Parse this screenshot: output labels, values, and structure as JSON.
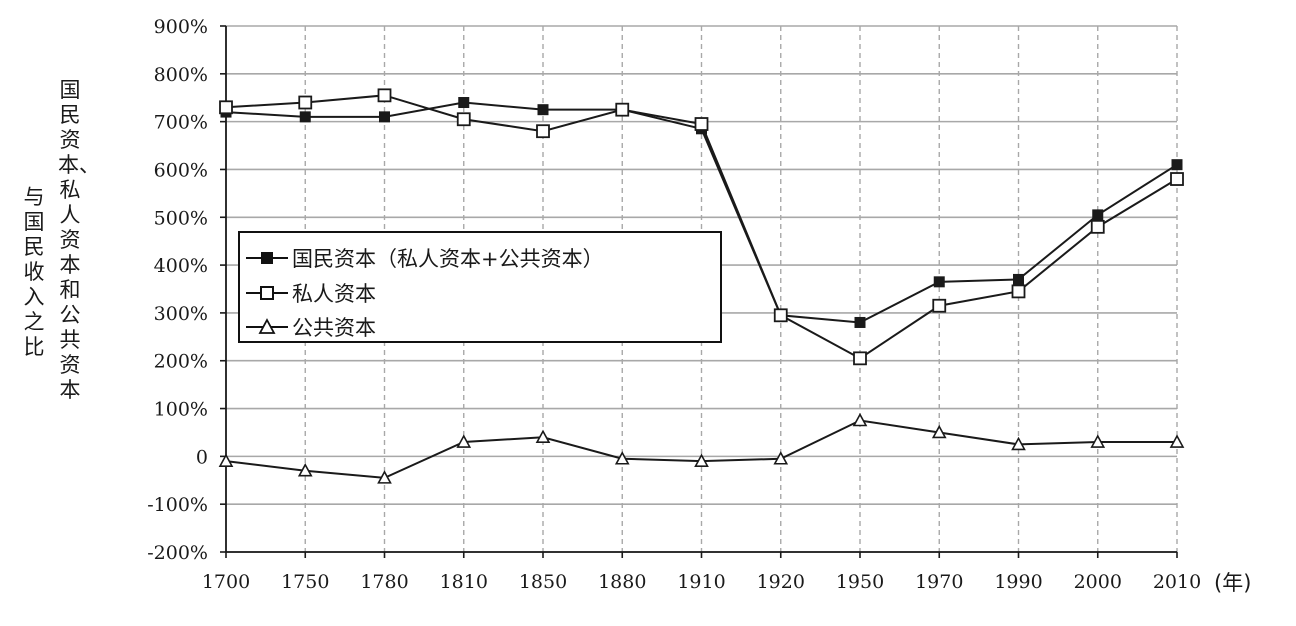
{
  "chart_data": {
    "type": "line",
    "title": "",
    "ylabel": "国民资本、私人资本和公共资本与国民收入之比",
    "ylabel_lines": [
      "国民资本、私人资本和公共资本",
      "与国民收入之比"
    ],
    "xlabel": "(年)",
    "ylim": [
      -200,
      900
    ],
    "yticks": [
      "900%",
      "800%",
      "700%",
      "600%",
      "500%",
      "400%",
      "300%",
      "200%",
      "100%",
      "0",
      "-100%",
      "-200%"
    ],
    "ytick_values": [
      900,
      800,
      700,
      600,
      500,
      400,
      300,
      200,
      100,
      0,
      -100,
      -200
    ],
    "categories": [
      "1700",
      "1750",
      "1780",
      "1810",
      "1850",
      "1880",
      "1910",
      "1920",
      "1950",
      "1970",
      "1990",
      "2000",
      "2010"
    ],
    "grid": true,
    "legend_position": "center-left",
    "series": [
      {
        "name": "国民资本（私人资本+公共资本）",
        "marker": "filled-square",
        "values": [
          720,
          710,
          710,
          740,
          725,
          725,
          685,
          295,
          280,
          365,
          370,
          505,
          610
        ]
      },
      {
        "name": "私人资本",
        "marker": "open-square",
        "values": [
          730,
          740,
          755,
          705,
          680,
          725,
          695,
          295,
          205,
          315,
          345,
          480,
          580
        ]
      },
      {
        "name": "公共资本",
        "marker": "open-triangle",
        "values": [
          -10,
          -30,
          -45,
          30,
          40,
          -5,
          -10,
          -5,
          75,
          50,
          25,
          30,
          30
        ]
      }
    ],
    "colors": {
      "line": "#1a1a1a",
      "grid": "#a8a8a8",
      "background": "#ffffff"
    }
  }
}
